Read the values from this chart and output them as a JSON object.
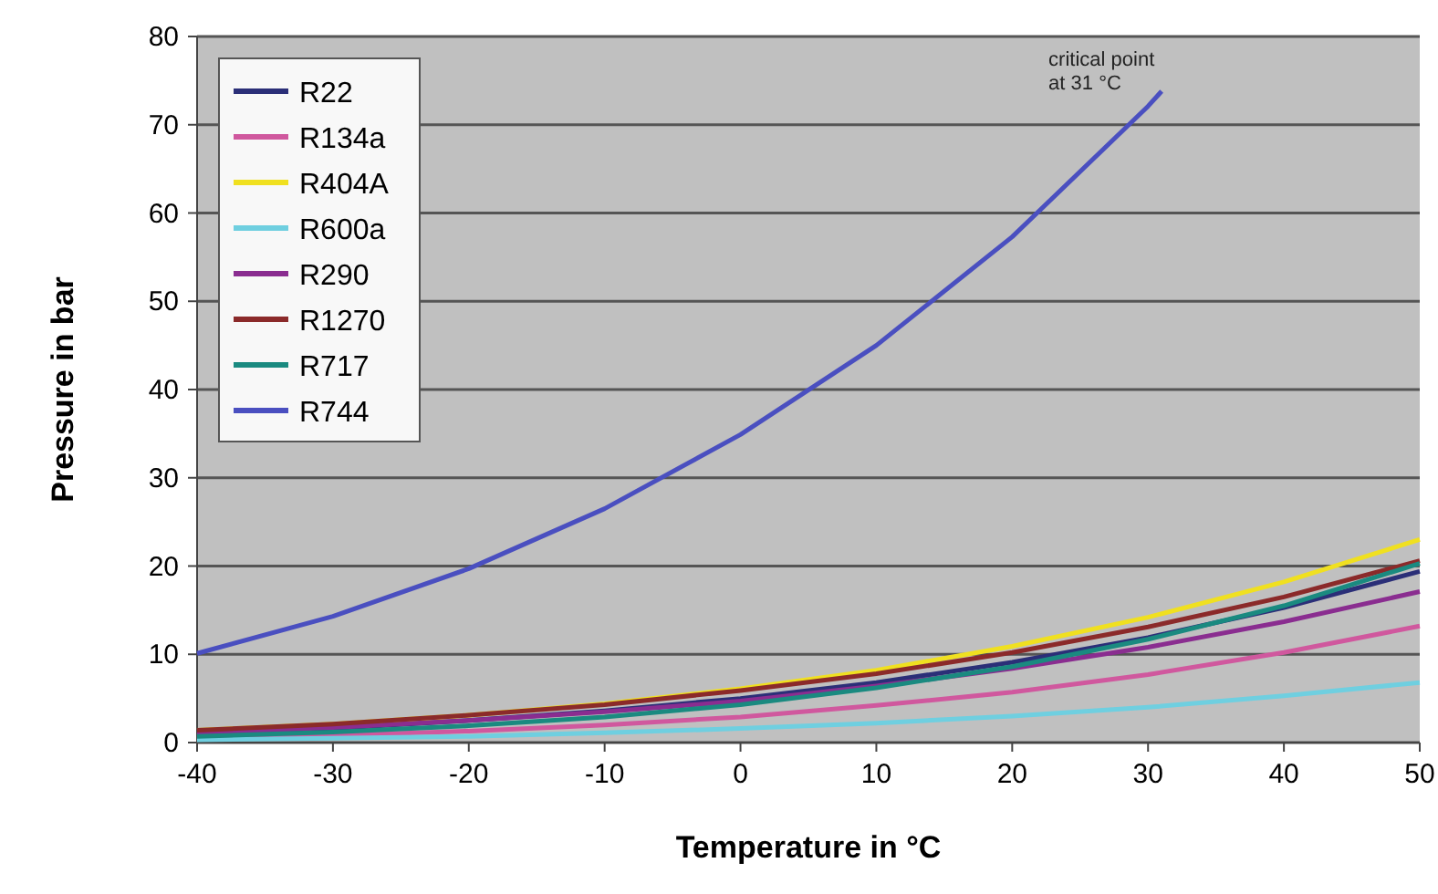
{
  "chart_data": {
    "type": "line",
    "xlabel": "Temperature in °C",
    "ylabel": "Pressure in bar",
    "x": [
      -40,
      -30,
      -20,
      -10,
      0,
      10,
      20,
      30,
      40,
      50
    ],
    "xlim": [
      -40,
      50
    ],
    "xticks": [
      -40,
      -30,
      -20,
      -10,
      0,
      10,
      20,
      30,
      40,
      50
    ],
    "ylim": [
      0,
      80
    ],
    "yticks": [
      0,
      10,
      20,
      30,
      40,
      50,
      60,
      70,
      80
    ],
    "grid": "y",
    "legend": "top left",
    "marker": "none",
    "line_style": "solid",
    "annotations": [
      {
        "text": "critical point\nat 31 °C",
        "x": 31,
        "y": 73.8
      }
    ],
    "series": [
      {
        "name": "R22",
        "color": "#2b2f78",
        "values": [
          1,
          1.6,
          2.5,
          3.6,
          5,
          6.8,
          9.1,
          11.9,
          15.3,
          19.4
        ]
      },
      {
        "name": "R134a",
        "color": "#d0589e",
        "values": [
          0.5,
          0.8,
          1.3,
          2,
          2.9,
          4.2,
          5.7,
          7.7,
          10.2,
          13.2
        ]
      },
      {
        "name": "R404A",
        "color": "#f0e020",
        "values": [
          1.4,
          2.1,
          3.1,
          4.4,
          6.1,
          8.2,
          10.9,
          14.2,
          18.2,
          23
        ]
      },
      {
        "name": "R600a",
        "color": "#6fcfe0",
        "values": [
          0.3,
          0.5,
          0.7,
          1.1,
          1.6,
          2.2,
          3,
          4,
          5.3,
          6.8
        ]
      },
      {
        "name": "R290",
        "color": "#8a2d90",
        "values": [
          1.1,
          1.7,
          2.5,
          3.5,
          4.7,
          6.4,
          8.4,
          10.8,
          13.7,
          17.1
        ]
      },
      {
        "name": "R1270",
        "color": "#8b2a2a",
        "values": [
          1.4,
          2.1,
          3.1,
          4.3,
          5.9,
          7.8,
          10.2,
          13.1,
          16.5,
          20.6
        ]
      },
      {
        "name": "R717",
        "color": "#1a8a80",
        "values": [
          0.7,
          1.2,
          1.9,
          2.9,
          4.3,
          6.2,
          8.6,
          11.7,
          15.5,
          20.3
        ]
      },
      {
        "name": "R744",
        "color": "#4a4fc0",
        "x": [
          -40,
          -30,
          -20,
          -10,
          0,
          10,
          20,
          30,
          31
        ],
        "values": [
          10.1,
          14.3,
          19.7,
          26.5,
          34.9,
          45,
          57.3,
          72.1,
          73.8
        ]
      }
    ]
  }
}
